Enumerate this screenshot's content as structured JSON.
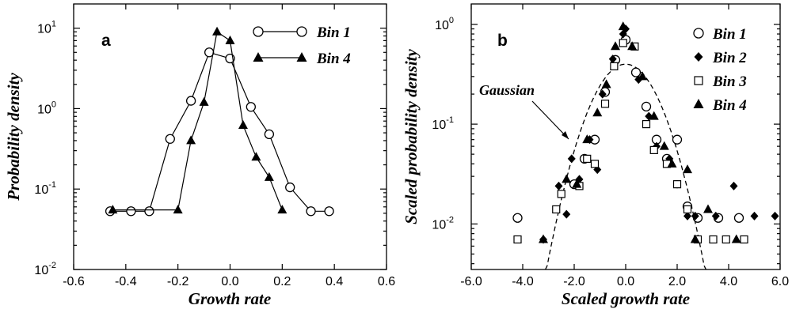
{
  "chart_data": [
    {
      "type": "line",
      "panel_label": "a",
      "xlabel": "Growth rate",
      "ylabel": "Probability density",
      "xlim": [
        -0.6,
        0.6
      ],
      "ylim": [
        0.01,
        20
      ],
      "yscale": "log",
      "xticks": [
        "-0.6",
        "-0.4",
        "-0.2",
        "0.0",
        "0.2",
        "0.4",
        "0.6"
      ],
      "yticks": [
        {
          "base": "10",
          "exp": "-2",
          "value": 0.01
        },
        {
          "base": "10",
          "exp": "-1",
          "value": 0.1
        },
        {
          "base": "10",
          "exp": "0",
          "value": 1
        },
        {
          "base": "10",
          "exp": "1",
          "value": 10
        }
      ],
      "legend_position": "top-right",
      "series": [
        {
          "name": "Bin 1",
          "marker": "open-circle",
          "x": [
            -0.46,
            -0.38,
            -0.31,
            -0.23,
            -0.15,
            -0.08,
            0.0,
            0.08,
            0.15,
            0.23,
            0.31,
            0.38
          ],
          "y": [
            0.053,
            0.053,
            0.053,
            0.42,
            1.25,
            5.0,
            4.2,
            1.05,
            0.48,
            0.105,
            0.053,
            0.053
          ]
        },
        {
          "name": "Bin 4",
          "marker": "filled-triangle",
          "x": [
            -0.45,
            -0.2,
            -0.15,
            -0.1,
            -0.05,
            0.0,
            0.05,
            0.1,
            0.15,
            0.2
          ],
          "y": [
            0.055,
            0.055,
            0.4,
            1.2,
            9.0,
            7.0,
            0.62,
            0.25,
            0.14,
            0.055
          ]
        }
      ]
    },
    {
      "type": "scatter",
      "panel_label": "b",
      "xlabel": "Scaled growth rate",
      "ylabel": "Scaled probability density",
      "xlim": [
        -6.0,
        6.0
      ],
      "ylim": [
        0.0035,
        1.6
      ],
      "yscale": "log",
      "xticks": [
        "-6.0",
        "-4.0",
        "-2.0",
        "0.0",
        "2.0",
        "4.0",
        "6.0"
      ],
      "yticks": [
        {
          "base": "10",
          "exp": "-2",
          "value": 0.01
        },
        {
          "base": "10",
          "exp": "-1",
          "value": 0.1
        },
        {
          "base": "10",
          "exp": "0",
          "value": 1
        }
      ],
      "legend_position": "top-right",
      "annotation": "Gaussian",
      "series": [
        {
          "name": "Bin 1",
          "marker": "open-circle",
          "x": [
            -4.2,
            -2.0,
            -1.6,
            -1.2,
            -0.8,
            -0.4,
            0.0,
            0.4,
            0.8,
            1.2,
            1.6,
            2.0,
            2.4,
            2.8,
            3.6,
            4.4
          ],
          "y": [
            0.0115,
            0.025,
            0.045,
            0.07,
            0.21,
            0.44,
            0.7,
            0.33,
            0.15,
            0.07,
            0.045,
            0.07,
            0.015,
            0.0115,
            0.0115,
            0.0115
          ]
        },
        {
          "name": "Bin 2",
          "marker": "filled-diamond",
          "x": [
            -3.2,
            -2.6,
            -2.3,
            -2.1,
            -1.8,
            -1.4,
            -1.1,
            -0.9,
            -0.5,
            -0.1,
            0.0,
            0.5,
            0.9,
            1.2,
            1.7,
            2.0,
            2.4,
            2.7,
            3.5,
            4.2,
            5.0,
            5.8
          ],
          "y": [
            0.007,
            0.024,
            0.0125,
            0.045,
            0.028,
            0.07,
            0.035,
            0.2,
            0.45,
            0.8,
            0.9,
            0.28,
            0.12,
            0.06,
            0.045,
            0.025,
            0.012,
            0.012,
            0.012,
            0.024,
            0.012,
            0.012
          ]
        },
        {
          "name": "Bin 3",
          "marker": "open-square",
          "x": [
            -4.2,
            -2.7,
            -2.5,
            -1.8,
            -1.5,
            -1.2,
            -0.8,
            -0.45,
            -0.1,
            0.35,
            0.8,
            1.1,
            1.6,
            2.0,
            2.4,
            2.8,
            3.4,
            3.9,
            4.6
          ],
          "y": [
            0.007,
            0.014,
            0.02,
            0.024,
            0.045,
            0.04,
            0.16,
            0.38,
            0.65,
            0.6,
            0.1,
            0.055,
            0.04,
            0.025,
            0.014,
            0.007,
            0.007,
            0.007,
            0.007
          ]
        },
        {
          "name": "Bin 4",
          "marker": "filled-triangle",
          "x": [
            -3.2,
            -2.3,
            -1.9,
            -1.5,
            -1.1,
            -0.75,
            -0.4,
            -0.1,
            0.25,
            0.65,
            1.1,
            1.5,
            1.8,
            2.4,
            2.7,
            3.2,
            4.3
          ],
          "y": [
            0.007,
            0.028,
            0.025,
            0.07,
            0.13,
            0.25,
            0.6,
            0.95,
            0.6,
            0.3,
            0.12,
            0.06,
            0.04,
            0.035,
            0.007,
            0.014,
            0.007
          ]
        }
      ]
    }
  ]
}
